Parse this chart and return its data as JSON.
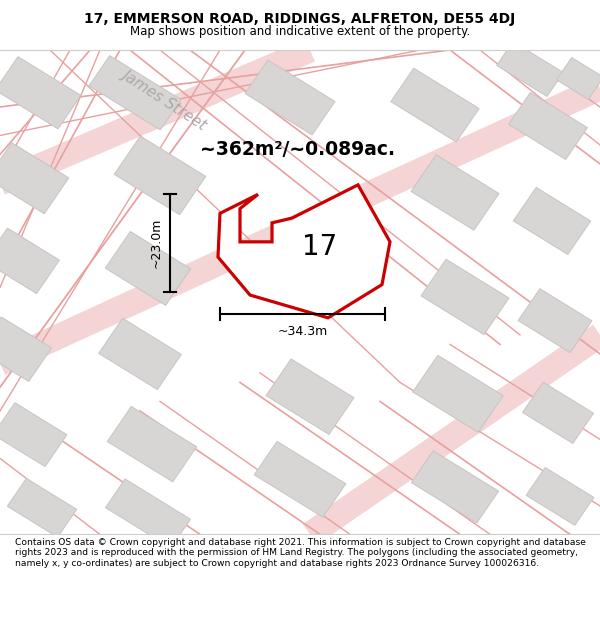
{
  "title_line1": "17, EMMERSON ROAD, RIDDINGS, ALFRETON, DE55 4DJ",
  "title_line2": "Map shows position and indicative extent of the property.",
  "footer_text": "Contains OS data © Crown copyright and database right 2021. This information is subject to Crown copyright and database rights 2023 and is reproduced with the permission of HM Land Registry. The polygons (including the associated geometry, namely x, y co-ordinates) are subject to Crown copyright and database rights 2023 Ordnance Survey 100026316.",
  "area_text": "~362m²/~0.089ac.",
  "label_text": "17",
  "dim_width": "~34.3m",
  "dim_height": "~23.0m",
  "street_label": "James Street",
  "map_bg": "#f2efef",
  "plot_fill": "#ffffff",
  "plot_outline": "#cc0000",
  "road_color": "#e8a0a0",
  "building_fill": "#d8d5d5",
  "building_outline": "#c8c4c4",
  "road_wide_color": "#e8a0a0",
  "road_wide_alpha": 0.45,
  "road_wide_lw": 18
}
